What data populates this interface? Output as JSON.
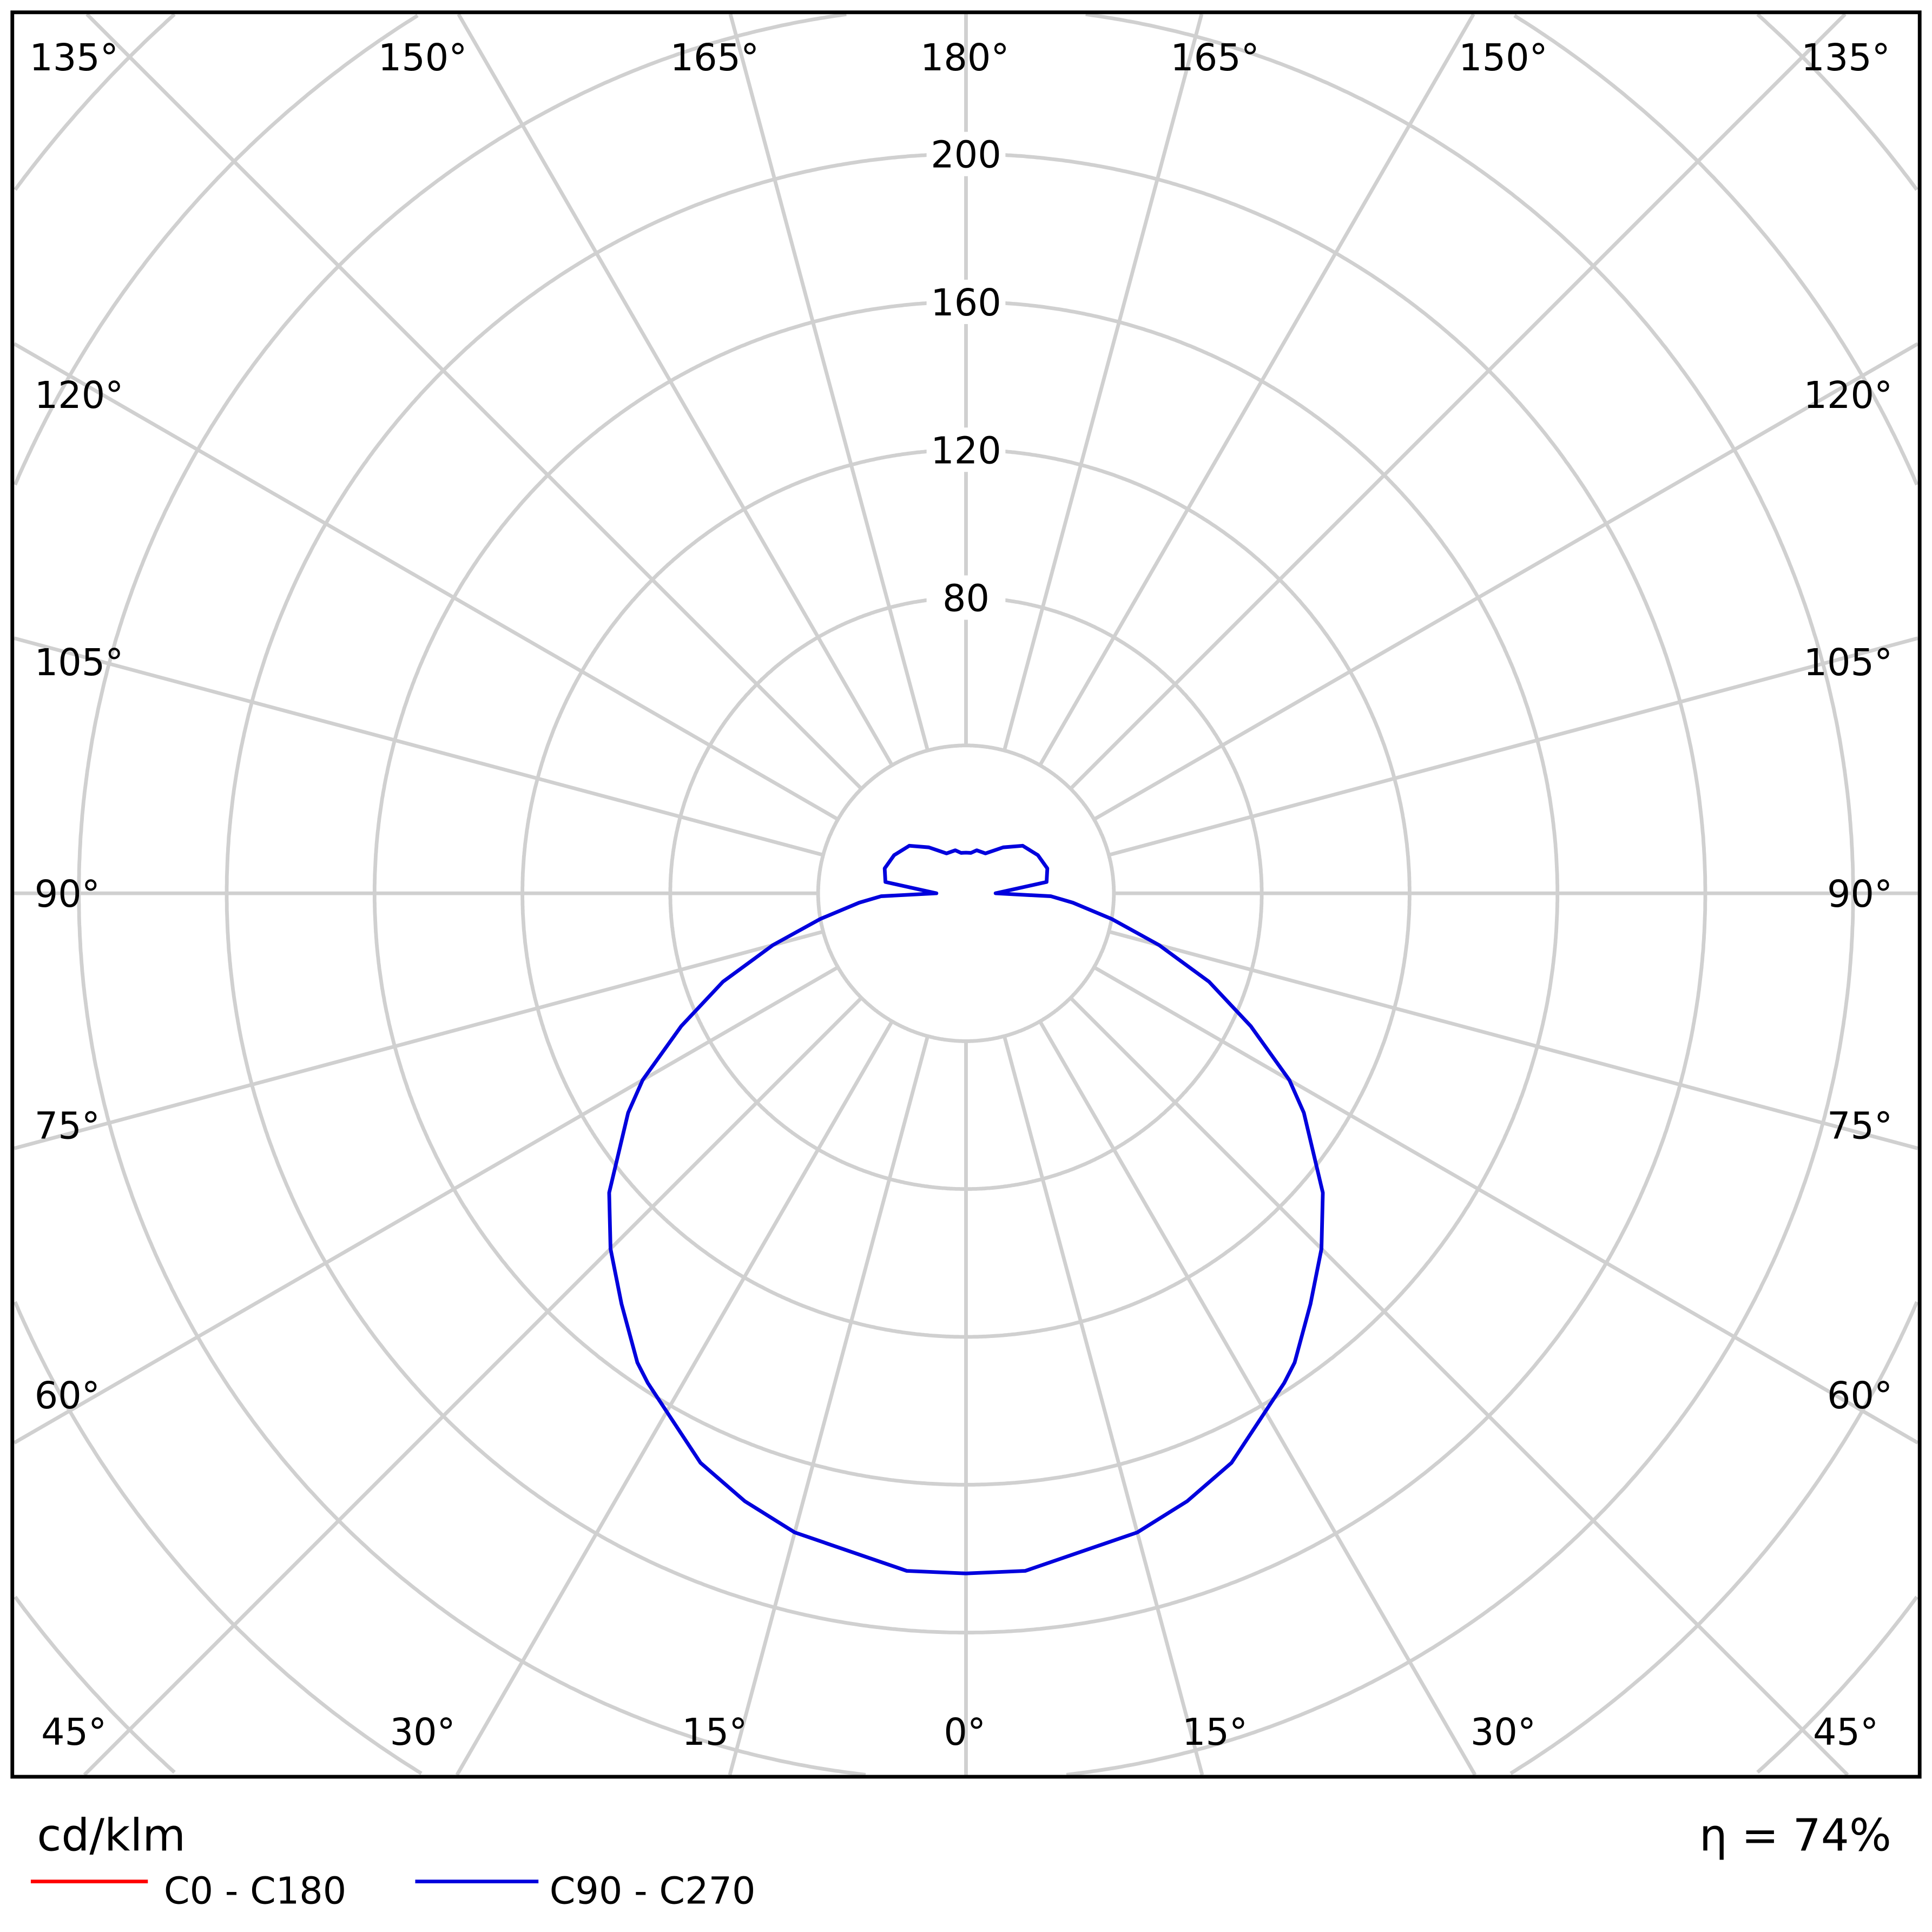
{
  "chart_data": {
    "type": "polar",
    "unit_label": "cd/klm",
    "efficiency_label": "η = 74%",
    "radial_ticks": [
      80,
      120,
      160,
      200
    ],
    "radial_max_visible": 240,
    "ring_step": 40,
    "grid": true,
    "angle_labels": {
      "top": [
        "135°",
        "150°",
        "165°",
        "180°",
        "165°",
        "150°",
        "135°"
      ],
      "left": [
        "120°",
        "105°",
        "90°",
        "75°",
        "60°"
      ],
      "right": [
        "120°",
        "105°",
        "90°",
        "75°",
        "60°"
      ],
      "bottom": [
        "45°",
        "30°",
        "15°",
        "0°",
        "15°",
        "30°",
        "45°"
      ]
    },
    "legend": [
      {
        "name": "C0 - C180",
        "color": "#ff0000"
      },
      {
        "name": "C90 - C270",
        "color": "#0000dd"
      }
    ],
    "series": [
      {
        "name": "C90 - C270",
        "color": "#0000dd",
        "angles": [
          0,
          5,
          15,
          20,
          25,
          33,
          35,
          40,
          45,
          50,
          57,
          60,
          65,
          70,
          75,
          80,
          85,
          88,
          90,
          98,
          107,
          118,
          130,
          141,
          154,
          166,
          173,
          180
        ],
        "values": [
          184,
          184,
          179,
          175,
          170,
          158,
          155,
          145,
          136,
          126,
          109,
          101,
          85,
          70,
          54,
          40,
          29,
          23,
          8,
          22,
          23,
          22,
          20,
          16,
          12,
          12,
          11,
          11
        ]
      }
    ]
  }
}
